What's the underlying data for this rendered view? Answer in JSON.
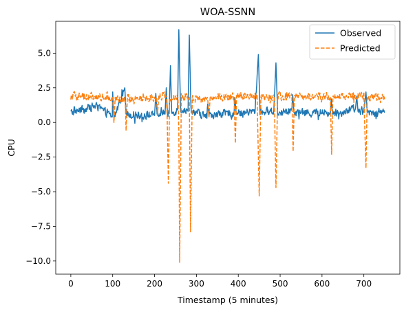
{
  "chart_data": {
    "type": "line",
    "title": "WOA-SSNN",
    "xlabel": "Timestamp (5 minutes)",
    "ylabel": "CPU",
    "xlim": [
      -36,
      786
    ],
    "ylim": [
      -10.95,
      7.3
    ],
    "x_ticks": [
      0,
      100,
      200,
      300,
      400,
      500,
      600,
      700
    ],
    "x_tick_labels": [
      "0",
      "100",
      "200",
      "300",
      "400",
      "500",
      "600",
      "700"
    ],
    "y_ticks": [
      5.0,
      2.5,
      0.0,
      -2.5,
      -5.0,
      -7.5,
      -10.0
    ],
    "y_tick_labels": [
      "5.0",
      "2.5",
      "0.0",
      "−2.5",
      "−5.0",
      "−7.5",
      "−10.0"
    ],
    "grid": false,
    "legend_position": "top-right",
    "series": [
      {
        "name": "Observed",
        "color": "#1f77b4",
        "style": "solid",
        "base": 0.8,
        "noise": 0.25,
        "points": [
          [
            0,
            0.7
          ],
          [
            60,
            1.2
          ],
          [
            99,
            0.4
          ],
          [
            100,
            2.2
          ],
          [
            103,
            0.3
          ],
          [
            129,
            2.5
          ],
          [
            132,
            0.6
          ],
          [
            200,
            0.5
          ],
          [
            203,
            2.1
          ],
          [
            206,
            0.6
          ],
          [
            225,
            0.6
          ],
          [
            228,
            2.5
          ],
          [
            231,
            0.5
          ],
          [
            235,
            0.8
          ],
          [
            238,
            4.1
          ],
          [
            241,
            0.7
          ],
          [
            255,
            0.9
          ],
          [
            258,
            6.7
          ],
          [
            262,
            1.0
          ],
          [
            280,
            0.8
          ],
          [
            283,
            6.3
          ],
          [
            287,
            0.9
          ],
          [
            325,
            0.4
          ],
          [
            327,
            1.3
          ],
          [
            330,
            0.5
          ],
          [
            390,
            0.7
          ],
          [
            392,
            1.8
          ],
          [
            395,
            0.6
          ],
          [
            440,
            0.8
          ],
          [
            448,
            4.9
          ],
          [
            452,
            0.8
          ],
          [
            485,
            0.8
          ],
          [
            490,
            4.3
          ],
          [
            494,
            0.7
          ],
          [
            528,
            0.9
          ],
          [
            530,
            2.0
          ],
          [
            533,
            0.7
          ],
          [
            620,
            0.7
          ],
          [
            622,
            1.7
          ],
          [
            625,
            0.6
          ],
          [
            680,
            1.0
          ],
          [
            683,
            1.9
          ],
          [
            686,
            0.8
          ],
          [
            700,
            0.8
          ],
          [
            705,
            2.2
          ],
          [
            708,
            0.7
          ],
          [
            750,
            0.8
          ]
        ]
      },
      {
        "name": "Predicted",
        "color": "#ff7f0e",
        "style": "dashed",
        "base": 1.85,
        "noise": 0.25,
        "points": [
          [
            0,
            1.9
          ],
          [
            100,
            1.8
          ],
          [
            103,
            0.0
          ],
          [
            106,
            1.8
          ],
          [
            130,
            1.6
          ],
          [
            132,
            -0.6
          ],
          [
            135,
            1.7
          ],
          [
            205,
            1.8
          ],
          [
            207,
            0.5
          ],
          [
            210,
            1.9
          ],
          [
            228,
            1.9
          ],
          [
            230,
            0.6
          ],
          [
            233,
            -4.4
          ],
          [
            236,
            1.7
          ],
          [
            256,
            1.8
          ],
          [
            258,
            -0.5
          ],
          [
            260,
            -10.1
          ],
          [
            264,
            1.9
          ],
          [
            283,
            1.9
          ],
          [
            286,
            -7.9
          ],
          [
            290,
            1.8
          ],
          [
            327,
            1.7
          ],
          [
            330,
            0.4
          ],
          [
            333,
            1.9
          ],
          [
            390,
            1.8
          ],
          [
            393,
            -1.5
          ],
          [
            396,
            1.9
          ],
          [
            445,
            1.8
          ],
          [
            450,
            -5.3
          ],
          [
            454,
            1.8
          ],
          [
            486,
            1.9
          ],
          [
            490,
            -4.7
          ],
          [
            494,
            1.9
          ],
          [
            528,
            1.8
          ],
          [
            531,
            -2.1
          ],
          [
            534,
            1.9
          ],
          [
            620,
            1.8
          ],
          [
            623,
            -2.3
          ],
          [
            626,
            1.9
          ],
          [
            700,
            1.9
          ],
          [
            705,
            -3.3
          ],
          [
            708,
            1.8
          ],
          [
            750,
            1.8
          ]
        ]
      }
    ]
  }
}
